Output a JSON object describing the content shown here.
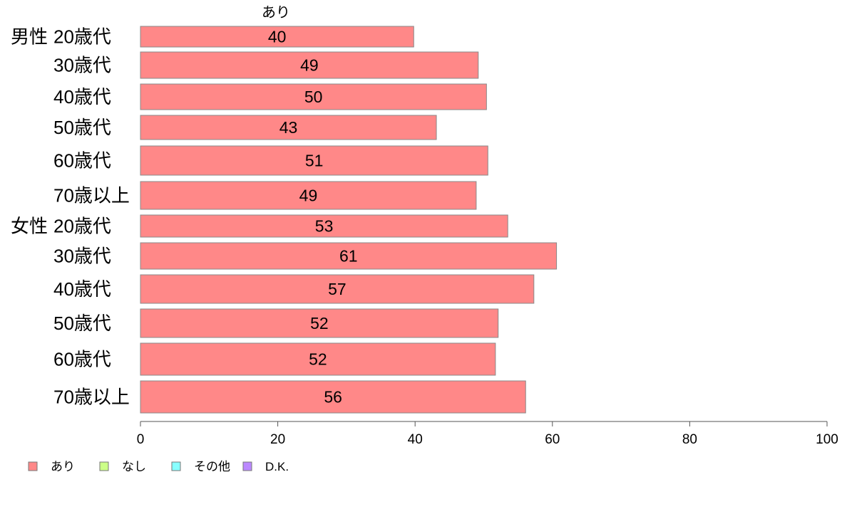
{
  "chart_data": {
    "type": "bar",
    "orientation": "horizontal",
    "series_title": "あり",
    "group_labels": [
      "男性",
      "女性"
    ],
    "categories": [
      {
        "group": "男性",
        "label": "20歳代"
      },
      {
        "group": "",
        "label": "30歳代"
      },
      {
        "group": "",
        "label": "40歳代"
      },
      {
        "group": "",
        "label": "50歳代"
      },
      {
        "group": "",
        "label": "60歳代"
      },
      {
        "group": "",
        "label": "70歳以上"
      },
      {
        "group": "女性",
        "label": "20歳代"
      },
      {
        "group": "",
        "label": "30歳代"
      },
      {
        "group": "",
        "label": "40歳代"
      },
      {
        "group": "",
        "label": "50歳代"
      },
      {
        "group": "",
        "label": "60歳代"
      },
      {
        "group": "",
        "label": "70歳以上"
      }
    ],
    "series": [
      {
        "name": "あり",
        "color": "#ff8888",
        "values": [
          39.8,
          49.2,
          50.4,
          43.1,
          50.6,
          48.9,
          53.5,
          60.6,
          57.3,
          52.1,
          51.7,
          56.1
        ],
        "labels": [
          "40",
          "49",
          "50",
          "43",
          "51",
          "49",
          "53",
          "61",
          "57",
          "52",
          "52",
          "56"
        ]
      }
    ],
    "xlim": [
      0,
      100
    ],
    "xticks": [
      "0",
      "20",
      "40",
      "60",
      "80",
      "100"
    ],
    "legend": {
      "position": "bottom-left",
      "items": [
        {
          "label": "あり",
          "color": "#ff8888"
        },
        {
          "label": "なし",
          "color": "#ccff88"
        },
        {
          "label": "その他",
          "color": "#88ffff"
        },
        {
          "label": "D.K.",
          "color": "#bb88ff"
        }
      ]
    },
    "grid": false
  }
}
